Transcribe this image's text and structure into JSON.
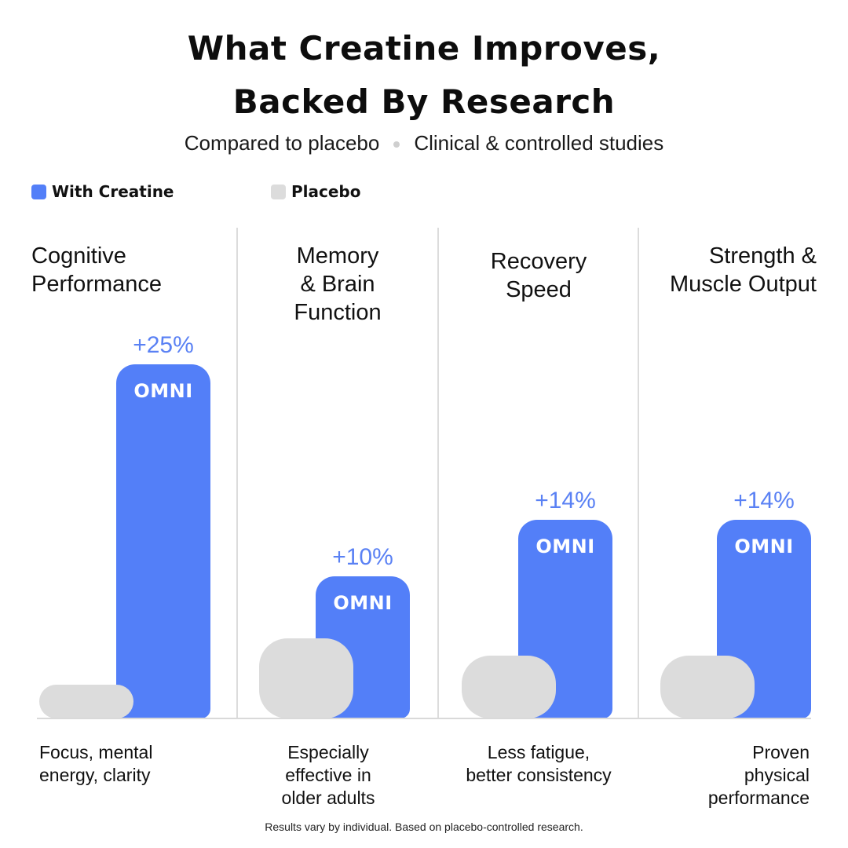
{
  "header": {
    "title_line1": "What Creatine Improves,",
    "title_line2": "Backed By Research",
    "subtitle_left": "Compared to placebo",
    "subtitle_right": "Clinical & controlled studies"
  },
  "legend": [
    {
      "label": "With Creatine",
      "color": "#537ff8"
    },
    {
      "label": "Placebo",
      "color": "#dcdcdc"
    }
  ],
  "chart_data": {
    "type": "bar",
    "categories": [
      "Cognitive Performance",
      "Memory & Brain Function",
      "Recovery Speed",
      "Strength & Muscle Output"
    ],
    "series": [
      {
        "name": "With Creatine",
        "values": [
          25,
          10,
          14,
          14
        ],
        "labels": [
          "+25%",
          "+10%",
          "+14%",
          "+14%"
        ],
        "bar_text": "OMNI",
        "color": "#537ff8"
      },
      {
        "name": "Placebo",
        "values": [
          2,
          6,
          4.5,
          4.5
        ],
        "color": "#dcdcdc"
      }
    ],
    "legend_position": "top-left",
    "grid": false
  },
  "panels": [
    {
      "title": [
        "Cognitive",
        "Performance"
      ],
      "value_label": "+25%",
      "brand": "OMNI",
      "desc": [
        "Focus, mental",
        "energy, clarity"
      ]
    },
    {
      "title": [
        "Memory",
        "& Brain",
        "Function"
      ],
      "value_label": "+10%",
      "brand": "OMNI",
      "desc": [
        "Especially",
        "effective in",
        "older adults"
      ]
    },
    {
      "title": [
        "Recovery",
        "Speed"
      ],
      "value_label": "+14%",
      "brand": "OMNI",
      "desc": [
        "Less fatigue,",
        "better consistency"
      ]
    },
    {
      "title": [
        "Strength &",
        "Muscle Output"
      ],
      "value_label": "+14%",
      "brand": "OMNI",
      "desc": [
        "Proven",
        "physical",
        "performance"
      ]
    }
  ],
  "footnote": "Results vary by individual. Based on placebo-controlled research."
}
